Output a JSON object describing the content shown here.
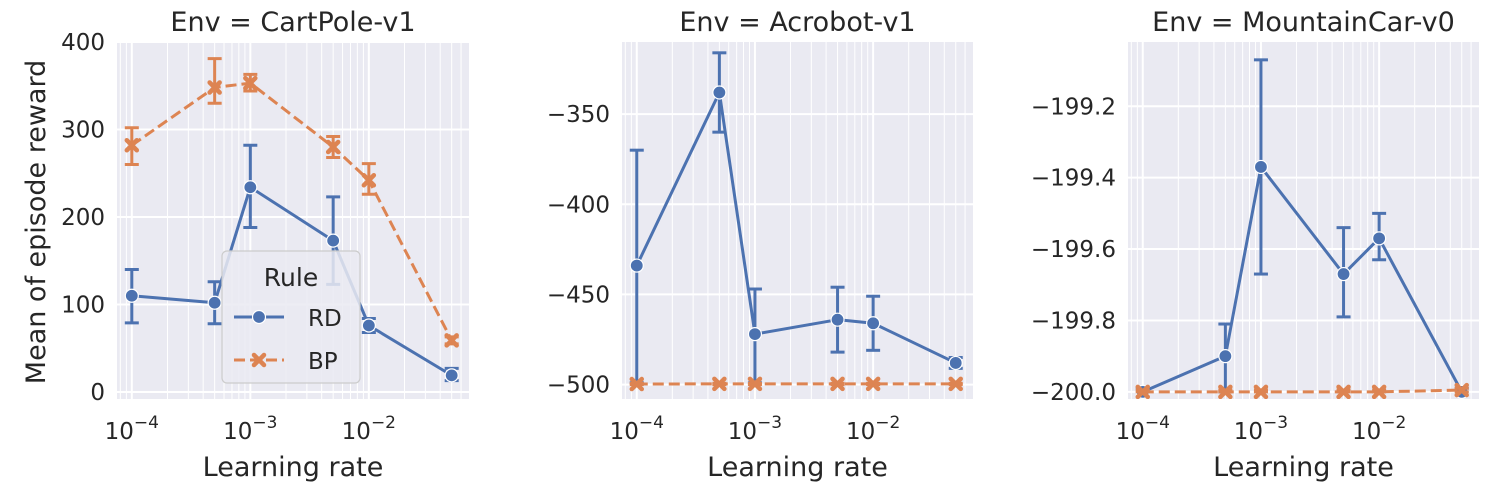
{
  "figure": {
    "ylabel": "Mean of episode reward",
    "legend": {
      "title": "Rule",
      "placement": "lower-center",
      "panel": 0
    }
  },
  "chart_data": [
    {
      "type": "line",
      "title": "Env = CartPole-v1",
      "xlabel": "Learning rate",
      "xscale": "log",
      "xlim": [
        7.5e-05,
        0.07
      ],
      "ylim": [
        -8,
        400
      ],
      "yticks": [
        0,
        100,
        200,
        300,
        400
      ],
      "yticklabels": [
        "0",
        "100",
        "200",
        "300",
        "400"
      ],
      "xticks": [
        0.0001,
        0.001,
        0.01
      ],
      "xticklabels": [
        [
          "10",
          "−4"
        ],
        [
          "10",
          "−3"
        ],
        [
          "10",
          "−2"
        ]
      ],
      "x": [
        0.0001,
        0.0005,
        0.001,
        0.005,
        0.01,
        0.05
      ],
      "grid": true,
      "series": [
        {
          "name": "RD",
          "color": "#4c72b0",
          "marker": "circle",
          "dash": false,
          "values": [
            110,
            102,
            234,
            173,
            76,
            19
          ],
          "err_low": [
            79,
            78,
            188,
            123,
            68,
            13
          ],
          "err_high": [
            140,
            126,
            282,
            223,
            84,
            27
          ]
        },
        {
          "name": "BP",
          "color": "#dd8452",
          "marker": "x",
          "dash": true,
          "values": [
            282,
            348,
            353,
            280,
            242,
            59
          ],
          "err_low": [
            260,
            330,
            344,
            268,
            226,
            55
          ],
          "err_high": [
            302,
            381,
            363,
            292,
            261,
            63
          ]
        }
      ]
    },
    {
      "type": "line",
      "title": "Env = Acrobot-v1",
      "xlabel": "Learning rate",
      "xscale": "log",
      "xlim": [
        7.5e-05,
        0.07
      ],
      "ylim": [
        -508,
        -310
      ],
      "yticks": [
        -350,
        -400,
        -450,
        -500
      ],
      "yticklabels": [
        "−350",
        "−400",
        "−450",
        "−500"
      ],
      "xticks": [
        0.0001,
        0.001,
        0.01
      ],
      "xticklabels": [
        [
          "10",
          "−4"
        ],
        [
          "10",
          "−3"
        ],
        [
          "10",
          "−2"
        ]
      ],
      "x": [
        0.0001,
        0.0005,
        0.001,
        0.005,
        0.01,
        0.05
      ],
      "grid": true,
      "series": [
        {
          "name": "RD",
          "color": "#4c72b0",
          "marker": "circle",
          "dash": false,
          "values": [
            -434,
            -338,
            -472,
            -464,
            -466,
            -488
          ],
          "err_low": [
            -499,
            -360,
            -499,
            -482,
            -481,
            -491
          ],
          "err_high": [
            -370,
            -316,
            -447,
            -446,
            -451,
            -485
          ]
        },
        {
          "name": "BP",
          "color": "#dd8452",
          "marker": "x",
          "dash": true,
          "values": [
            -499.7,
            -499.6,
            -499.6,
            -499.6,
            -499.6,
            -499.6
          ],
          "err_low": [
            -500,
            -500,
            -500,
            -500,
            -500,
            -500
          ],
          "err_high": [
            -499.3,
            -499.3,
            -499.3,
            -499.3,
            -499.3,
            -499.3
          ]
        }
      ]
    },
    {
      "type": "line",
      "title": "Env = MountainCar-v0",
      "xlabel": "Learning rate",
      "xscale": "log",
      "xlim": [
        7.5e-05,
        0.07
      ],
      "ylim": [
        -200.02,
        -199.02
      ],
      "yticks": [
        -199.2,
        -199.4,
        -199.6,
        -199.8,
        -200.0
      ],
      "yticklabels": [
        "−199.2",
        "−199.4",
        "−199.6",
        "−199.8",
        "−200.0"
      ],
      "xticks": [
        0.0001,
        0.001,
        0.01
      ],
      "xticklabels": [
        [
          "10",
          "−4"
        ],
        [
          "10",
          "−3"
        ],
        [
          "10",
          "−2"
        ]
      ],
      "x": [
        0.0001,
        0.0005,
        0.001,
        0.005,
        0.01,
        0.05
      ],
      "grid": true,
      "series": [
        {
          "name": "RD",
          "color": "#4c72b0",
          "marker": "circle",
          "dash": false,
          "values": [
            -200.0,
            -199.9,
            -199.37,
            -199.67,
            -199.57,
            -200.0
          ],
          "err_low": [
            -200.0,
            -200.0,
            -199.67,
            -199.79,
            -199.63,
            -200.0
          ],
          "err_high": [
            -199.99,
            -199.81,
            -199.07,
            -199.54,
            -199.5,
            -199.99
          ]
        },
        {
          "name": "BP",
          "color": "#dd8452",
          "marker": "x",
          "dash": true,
          "values": [
            -200.0,
            -200.0,
            -200.0,
            -200.0,
            -200.0,
            -199.995
          ],
          "err_low": [
            -200.0,
            -200.0,
            -200.0,
            -200.0,
            -200.0,
            -200.0
          ],
          "err_high": [
            -199.995,
            -199.995,
            -199.995,
            -199.995,
            -199.995,
            -199.99
          ]
        }
      ]
    }
  ]
}
